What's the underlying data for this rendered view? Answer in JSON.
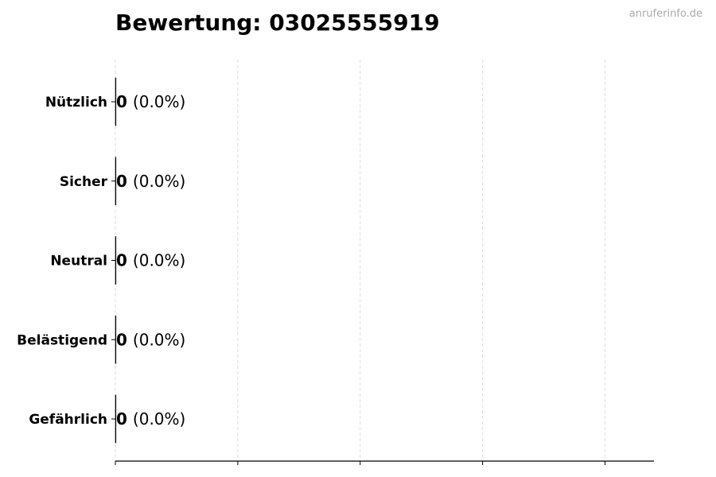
{
  "chart_data": {
    "type": "bar",
    "orientation": "horizontal",
    "title": "Bewertung: 03025555919",
    "watermark": "anruferinfo.de",
    "categories": [
      "Nützlich",
      "Sicher",
      "Neutral",
      "Belästigend",
      "Gefährlich"
    ],
    "values": [
      0,
      0,
      0,
      0,
      0
    ],
    "data_labels": [
      {
        "count": "0",
        "percent": "(0.0%)"
      },
      {
        "count": "0",
        "percent": "(0.0%)"
      },
      {
        "count": "0",
        "percent": "(0.0%)"
      },
      {
        "count": "0",
        "percent": "(0.0%)"
      },
      {
        "count": "0",
        "percent": "(0.0%)"
      }
    ],
    "xlabel": "",
    "ylabel": "",
    "xlim": [
      0,
      4.4
    ],
    "xticks": [
      0,
      1,
      2,
      3,
      4
    ],
    "xtick_labels_shown": false,
    "grid": "x-dashed",
    "colors": {
      "grid": "#dddddd",
      "axis": "#000000",
      "bar_edge": "#000000",
      "watermark": "#aaaaaa"
    }
  }
}
